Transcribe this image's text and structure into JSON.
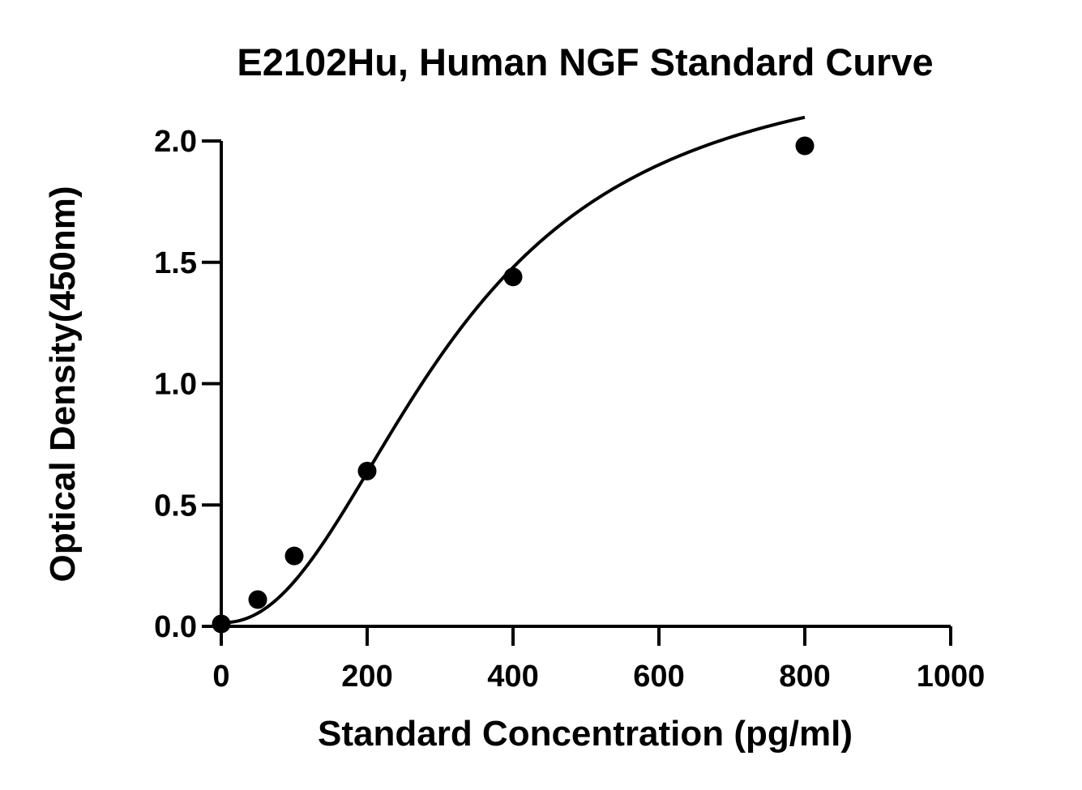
{
  "chart_data": {
    "type": "scatter",
    "title": "E2102Hu, Human NGF Standard Curve",
    "xlabel": "Standard Concentration (pg/ml)",
    "ylabel": "Optical Density(450nm)",
    "xlim": [
      0,
      1000
    ],
    "ylim": [
      0,
      2.0
    ],
    "xticks": [
      0,
      200,
      400,
      600,
      800,
      1000
    ],
    "yticks": [
      0.0,
      0.5,
      1.0,
      1.5,
      2.0
    ],
    "xtick_labels": [
      "0",
      "200",
      "400",
      "600",
      "800",
      "1000"
    ],
    "ytick_labels": [
      "0.0",
      "0.5",
      "1.0",
      "1.5",
      "2.0"
    ],
    "grid": false,
    "fit": "four-parameter logistic curve",
    "series": [
      {
        "x": [
          0,
          50,
          100,
          200,
          400,
          800
        ],
        "y": [
          0.01,
          0.11,
          0.29,
          0.64,
          1.44,
          1.98
        ]
      }
    ],
    "colors": {
      "points": "#000000",
      "curve": "#000000",
      "axes": "#000000"
    }
  }
}
